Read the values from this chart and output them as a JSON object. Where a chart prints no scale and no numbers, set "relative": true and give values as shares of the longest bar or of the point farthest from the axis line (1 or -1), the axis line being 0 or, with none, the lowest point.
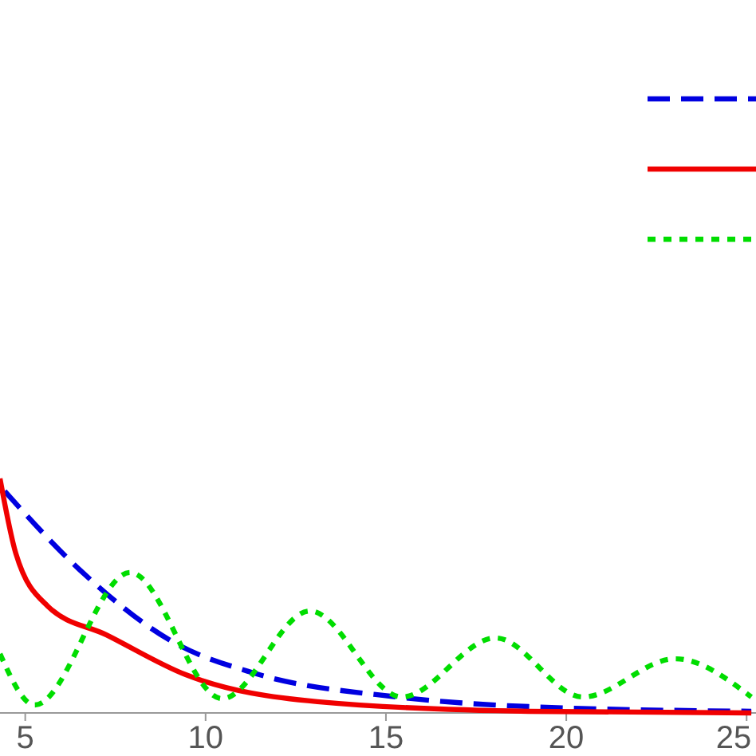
{
  "chart_data": {
    "type": "line",
    "relative": true,
    "xlim": [
      4.3,
      25.26
    ],
    "xticks": [
      5,
      10,
      15,
      20,
      25
    ],
    "series": [
      {
        "color": "#0000e0",
        "line_style": "dashed",
        "x": [
          4.43,
          6.5,
          9.14,
          11.34,
          15.31,
          18.96,
          25.13
        ],
        "values": [
          0.946,
          0.612,
          0.299,
          0.17,
          0.068,
          0.027,
          0.007
        ]
      },
      {
        "color": "#f00000",
        "line_style": "solid",
        "x": [
          4.3,
          4.74,
          5.62,
          7.25,
          9.45,
          13.1,
          18.96,
          25.13
        ],
        "values": [
          1.0,
          0.68,
          0.456,
          0.333,
          0.163,
          0.048,
          0.007,
          0
        ]
      },
      {
        "color": "#00dd00",
        "line_style": "dotted",
        "x": [
          4.3,
          5.26,
          7.91,
          10.46,
          12.89,
          15.44,
          18.04,
          20.46,
          23.02,
          25.13
        ],
        "values": [
          0.252,
          0.034,
          0.599,
          0.061,
          0.435,
          0.068,
          0.32,
          0.068,
          0.231,
          0.068
        ]
      }
    ]
  }
}
